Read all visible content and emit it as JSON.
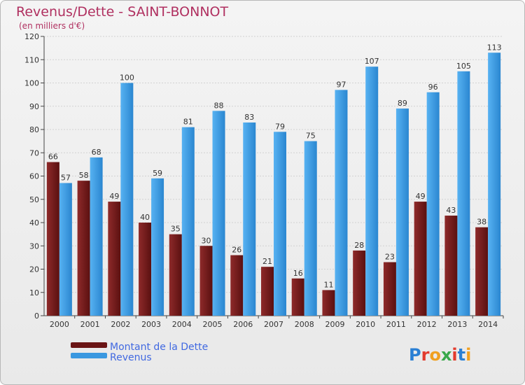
{
  "chart_data": {
    "type": "bar",
    "title": "Revenus/Dette - SAINT-BONNOT",
    "subtitle": "(en milliers d'€)",
    "categories": [
      "2000",
      "2001",
      "2002",
      "2003",
      "2004",
      "2005",
      "2006",
      "2007",
      "2008",
      "2009",
      "2010",
      "2011",
      "2012",
      "2013",
      "2014"
    ],
    "series": [
      {
        "name": "Montant de la Dette",
        "color": "#7a1b1b",
        "values": [
          66,
          58,
          49,
          40,
          35,
          30,
          26,
          21,
          16,
          11,
          28,
          23,
          49,
          43,
          38
        ]
      },
      {
        "name": "Revenus",
        "color": "#3a98e0",
        "values": [
          57,
          68,
          100,
          59,
          81,
          88,
          83,
          79,
          75,
          97,
          107,
          89,
          96,
          105,
          113
        ]
      }
    ],
    "ylim": [
      0,
      120
    ],
    "yticks": [
      0,
      10,
      20,
      30,
      40,
      50,
      60,
      70,
      80,
      90,
      100,
      110,
      120
    ],
    "grid": true,
    "legend_position": "bottom-left"
  },
  "logo": {
    "text": "Proxiti"
  }
}
